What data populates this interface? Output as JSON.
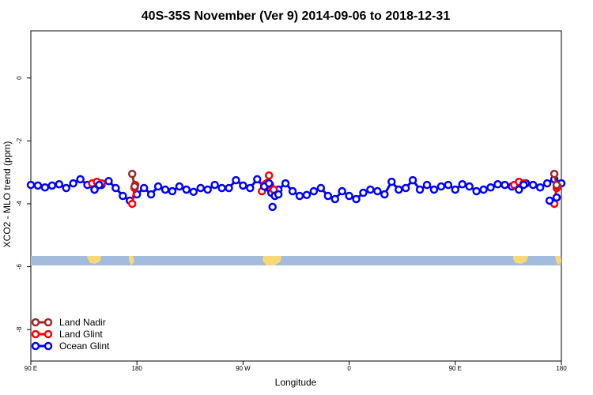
{
  "chart_data": {
    "type": "line",
    "title": "40S-35S November (Ver 9)   2014-09-06 to 2018-12-31",
    "xlabel": "Longitude",
    "ylabel": "XCO2 - MLO trend (ppm)",
    "x_axis": {
      "lon_range": [
        90,
        450
      ],
      "ticks": [
        {
          "lon": 90,
          "label": "90 E"
        },
        {
          "lon": 180,
          "label": "180"
        },
        {
          "lon": 270,
          "label": "90 W"
        },
        {
          "lon": 360,
          "label": "0"
        },
        {
          "lon": 450,
          "label": "90 E"
        },
        {
          "lon": 540,
          "label": "180"
        }
      ]
    },
    "x_axis_full_range": [
      90,
      540
    ],
    "y_axis": {
      "ylim": [
        -9,
        1.5
      ],
      "ticks": [
        {
          "value": 0,
          "label": "0"
        },
        {
          "value": -2,
          "label": "-2"
        },
        {
          "value": -4,
          "label": "-4"
        },
        {
          "value": -6,
          "label": "-6"
        },
        {
          "value": -8,
          "label": "-8"
        }
      ]
    },
    "legend_position": "bottom-left",
    "series": [
      {
        "name": "Land Nadir",
        "color": "#9a2a2a",
        "segments": [
          [
            [
              176,
              -3.05
            ],
            [
              178,
              -3.45
            ]
          ],
          [
            [
              534,
              -3.05
            ],
            [
              536,
              -3.4
            ]
          ]
        ]
      },
      {
        "name": "Land Glint",
        "color": "#ff0000",
        "segments": [
          [
            [
              142,
              -3.35
            ],
            [
              146,
              -3.3
            ],
            [
              150,
              -3.35
            ]
          ],
          [
            [
              176,
              -4.0
            ],
            [
              178,
              -3.5
            ],
            [
              178.5,
              -3.4
            ]
          ],
          [
            [
              286,
              -3.6
            ],
            [
              288,
              -3.4
            ],
            [
              290,
              -3.35
            ],
            [
              292,
              -3.1
            ],
            [
              293,
              -3.4
            ],
            [
              296,
              -3.55
            ]
          ],
          [
            [
              500,
              -3.4
            ],
            [
              504,
              -3.3
            ],
            [
              508,
              -3.35
            ]
          ],
          [
            [
              534,
              -4.0
            ],
            [
              536,
              -3.5
            ],
            [
              537,
              -3.45
            ]
          ]
        ]
      },
      {
        "name": "Ocean Glint",
        "color": "#0000ff",
        "segments": [
          [
            [
              90,
              -3.4
            ],
            [
              96,
              -3.42
            ],
            [
              102,
              -3.48
            ],
            [
              108,
              -3.42
            ],
            [
              114,
              -3.38
            ],
            [
              120,
              -3.5
            ],
            [
              126,
              -3.35
            ],
            [
              132,
              -3.22
            ],
            [
              138,
              -3.4
            ],
            [
              144,
              -3.55
            ],
            [
              150,
              -3.4
            ],
            [
              156,
              -3.28
            ],
            [
              162,
              -3.5
            ],
            [
              168,
              -3.75
            ],
            [
              174,
              -3.9
            ],
            [
              180,
              -3.7
            ],
            [
              186,
              -3.5
            ],
            [
              192,
              -3.7
            ],
            [
              198,
              -3.45
            ],
            [
              204,
              -3.55
            ],
            [
              210,
              -3.6
            ],
            [
              216,
              -3.45
            ],
            [
              222,
              -3.55
            ],
            [
              228,
              -3.62
            ],
            [
              234,
              -3.5
            ],
            [
              240,
              -3.55
            ],
            [
              246,
              -3.4
            ],
            [
              252,
              -3.5
            ],
            [
              258,
              -3.5
            ],
            [
              264,
              -3.25
            ],
            [
              270,
              -3.42
            ],
            [
              276,
              -3.5
            ],
            [
              282,
              -3.22
            ],
            [
              288,
              -3.5
            ],
            [
              294,
              -3.65
            ],
            [
              300,
              -3.55
            ],
            [
              306,
              -3.35
            ],
            [
              312,
              -3.6
            ],
            [
              318,
              -3.75
            ],
            [
              324,
              -3.72
            ],
            [
              330,
              -3.6
            ],
            [
              336,
              -3.5
            ],
            [
              342,
              -3.75
            ],
            [
              348,
              -3.85
            ],
            [
              354,
              -3.6
            ],
            [
              360,
              -3.75
            ],
            [
              366,
              -3.85
            ],
            [
              372,
              -3.65
            ],
            [
              378,
              -3.55
            ],
            [
              384,
              -3.6
            ],
            [
              390,
              -3.7
            ],
            [
              396,
              -3.3
            ],
            [
              402,
              -3.55
            ],
            [
              408,
              -3.5
            ],
            [
              414,
              -3.25
            ],
            [
              420,
              -3.55
            ],
            [
              426,
              -3.4
            ],
            [
              432,
              -3.55
            ],
            [
              438,
              -3.45
            ],
            [
              444,
              -3.4
            ],
            [
              450,
              -3.55
            ],
            [
              456,
              -3.38
            ],
            [
              462,
              -3.45
            ],
            [
              468,
              -3.6
            ],
            [
              474,
              -3.55
            ],
            [
              480,
              -3.48
            ],
            [
              486,
              -3.38
            ],
            [
              492,
              -3.4
            ],
            [
              498,
              -3.45
            ],
            [
              504,
              -3.38
            ],
            [
              510,
              -3.35
            ],
            [
              516,
              -3.4
            ],
            [
              522,
              -3.48
            ],
            [
              528,
              -3.35
            ],
            [
              534,
              -3.22
            ],
            [
              540,
              -3.35
            ]
          ]
        ]
      }
    ],
    "overlay_points": [
      [
        288,
        -3.45
      ],
      [
        292,
        -3.35
      ],
      [
        295,
        -4.1
      ],
      [
        297,
        -3.75
      ],
      [
        300,
        -3.7
      ],
      [
        144,
        -3.55
      ],
      [
        148,
        -3.4
      ],
      [
        504,
        -3.55
      ],
      [
        508,
        -3.4
      ],
      [
        530,
        -3.9
      ],
      [
        536,
        -3.8
      ]
    ],
    "map_strip": {
      "value_range": [
        -5.45,
        -5.75
      ],
      "ocean_color": "#a3bbdc",
      "land_color": "#f9d877"
    }
  }
}
